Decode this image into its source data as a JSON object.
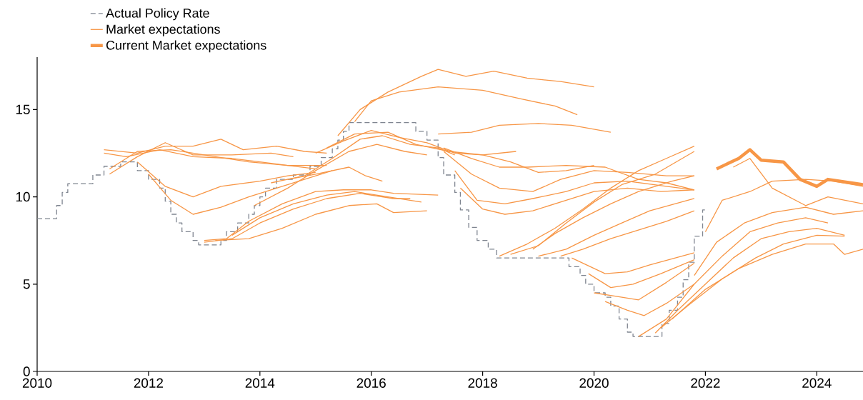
{
  "chart_data": {
    "type": "line",
    "xlim": [
      2010,
      2024.83
    ],
    "ylim": [
      0,
      18
    ],
    "xticks": [
      2010,
      2012,
      2014,
      2016,
      2018,
      2020,
      2022,
      2024
    ],
    "yticks": [
      0,
      5,
      10,
      15
    ],
    "legend": "top left",
    "series": [
      {
        "name": "Actual Policy Rate",
        "type": "step",
        "line_style": "dashed",
        "color": "#7f8590",
        "x": [
          2010,
          2010.35,
          2010.45,
          2010.55,
          2011.0,
          2011.2,
          2011.5,
          2011.8,
          2012.0,
          2012.2,
          2012.3,
          2012.4,
          2012.5,
          2012.6,
          2012.8,
          2012.9,
          2013.3,
          2013.4,
          2013.6,
          2013.8,
          2013.9,
          2014.0,
          2014.1,
          2014.3,
          2014.6,
          2014.9,
          2015.1,
          2015.3,
          2015.4,
          2015.5,
          2015.6,
          2016.8,
          2017.0,
          2017.2,
          2017.3,
          2017.5,
          2017.6,
          2017.75,
          2017.9,
          2018.1,
          2018.25,
          2019.55,
          2019.75,
          2019.85,
          2020.0,
          2020.2,
          2020.3,
          2020.45,
          2020.6,
          2020.7,
          2021.22,
          2021.35,
          2021.5,
          2021.6,
          2021.7,
          2021.8,
          2021.95,
          2022.0
        ],
        "values": [
          8.75,
          9.5,
          10.25,
          10.75,
          11.25,
          11.75,
          12.0,
          11.5,
          11.0,
          10.5,
          9.75,
          9.0,
          8.5,
          8.0,
          7.5,
          7.25,
          7.5,
          8.0,
          8.5,
          9.0,
          9.5,
          10.0,
          10.5,
          11.0,
          11.25,
          11.75,
          12.25,
          12.75,
          13.25,
          13.75,
          14.25,
          13.75,
          13.25,
          12.25,
          11.25,
          10.25,
          9.25,
          8.25,
          7.5,
          7.0,
          6.5,
          6.0,
          5.5,
          5.0,
          4.5,
          4.25,
          3.75,
          3.0,
          2.25,
          2.0,
          2.75,
          3.5,
          4.25,
          5.25,
          6.25,
          7.75,
          9.25,
          9.25
        ]
      },
      {
        "name": "Market expectations",
        "color": "#f79646",
        "x": [
          2011.2,
          2011.8,
          2012.3,
          2012.8,
          2013.3,
          2013.7,
          2014.3,
          2014.8,
          2015.2
        ],
        "values": [
          12.7,
          12.5,
          12.9,
          12.9,
          13.3,
          12.7,
          12.9,
          12.6,
          12.5
        ]
      },
      {
        "color": "#f79646",
        "x": [
          2011.2,
          2011.6,
          2012.2,
          2012.8,
          2013.5,
          2014.0,
          2014.5,
          2015.2
        ],
        "values": [
          12.5,
          12.3,
          12.7,
          12.3,
          12.2,
          12.0,
          11.8,
          11.8
        ]
      },
      {
        "color": "#f79646",
        "x": [
          2011.3,
          2011.8,
          2012.3,
          2012.8,
          2013.5,
          2014.2,
          2014.6
        ],
        "values": [
          11.3,
          12.3,
          13.1,
          12.4,
          12.4,
          12.5,
          12.3
        ]
      },
      {
        "color": "#f79646",
        "x": [
          2011.3,
          2011.8,
          2012.4,
          2013.0,
          2013.8,
          2014.5,
          2015.0
        ],
        "values": [
          11.6,
          12.6,
          12.7,
          12.4,
          12.0,
          11.8,
          11.6
        ]
      },
      {
        "color": "#f79646",
        "x": [
          2011.8,
          2012.3,
          2012.8,
          2013.3,
          2014.0,
          2014.5,
          2015.0
        ],
        "values": [
          12.0,
          10.6,
          10.0,
          10.6,
          10.9,
          11.2,
          11.4
        ]
      },
      {
        "color": "#f79646",
        "x": [
          2012.0,
          2012.4,
          2012.8,
          2013.3,
          2013.8,
          2014.3,
          2014.8,
          2015.3
        ],
        "values": [
          11.3,
          9.8,
          9.0,
          9.4,
          10.0,
          10.5,
          11.0,
          11.5
        ]
      },
      {
        "color": "#f79646",
        "x": [
          2013.0,
          2013.4,
          2013.8,
          2014.4,
          2015.0,
          2015.5,
          2016.0,
          2016.4,
          2017.2
        ],
        "values": [
          7.5,
          7.6,
          8.6,
          9.6,
          10.3,
          10.4,
          10.4,
          10.2,
          10.1
        ]
      },
      {
        "color": "#f79646",
        "x": [
          2013.0,
          2013.5,
          2014.0,
          2014.6,
          2015.2,
          2015.8,
          2016.4,
          2016.7
        ],
        "values": [
          7.4,
          7.6,
          8.5,
          9.3,
          9.9,
          10.2,
          9.9,
          9.9
        ]
      },
      {
        "color": "#f79646",
        "x": [
          2013.2,
          2013.8,
          2014.4,
          2015.0,
          2015.6,
          2016.1,
          2016.4,
          2017.0
        ],
        "values": [
          7.5,
          7.6,
          8.2,
          9.0,
          9.5,
          9.6,
          9.1,
          9.2
        ]
      },
      {
        "color": "#f79646",
        "x": [
          2013.5,
          2014.0,
          2014.6,
          2015.2,
          2015.7,
          2016.3,
          2016.9
        ],
        "values": [
          7.8,
          8.8,
          9.6,
          10.1,
          10.3,
          10.0,
          9.7
        ]
      },
      {
        "color": "#f79646",
        "x": [
          2013.9,
          2014.5,
          2015.0,
          2015.6,
          2016.1,
          2016.6,
          2017.0
        ],
        "values": [
          9.5,
          10.5,
          11.5,
          12.6,
          13.0,
          12.6,
          12.4
        ]
      },
      {
        "color": "#f79646",
        "x": [
          2014.2,
          2014.8,
          2015.3,
          2015.8,
          2016.2,
          2016.7,
          2017.2,
          2017.5
        ],
        "values": [
          10.8,
          11.2,
          12.2,
          13.3,
          13.5,
          13.0,
          12.8,
          12.4
        ]
      },
      {
        "color": "#f79646",
        "x": [
          2014.5,
          2015.0,
          2015.6,
          2015.9,
          2016.2
        ],
        "values": [
          11.0,
          11.3,
          11.7,
          11.2,
          10.9
        ]
      },
      {
        "color": "#f79646",
        "x": [
          2015.0,
          2015.5,
          2016.0,
          2016.5,
          2017.0,
          2017.5,
          2018.0,
          2018.6
        ],
        "values": [
          12.5,
          13.2,
          13.8,
          13.4,
          13.1,
          12.5,
          12.4,
          12.6
        ]
      },
      {
        "color": "#f79646",
        "x": [
          2015.2,
          2015.7,
          2016.3,
          2016.8,
          2017.4,
          2018.0,
          2018.5,
          2019.0,
          2019.5,
          2020.0
        ],
        "values": [
          12.8,
          13.6,
          13.7,
          13.0,
          12.6,
          12.4,
          12.0,
          11.4,
          11.5,
          11.8
        ]
      },
      {
        "color": "#f79646",
        "x": [
          2015.4,
          2015.8,
          2016.3,
          2016.9,
          2017.2,
          2017.7,
          2018.2,
          2018.8,
          2019.4,
          2020.0
        ],
        "values": [
          13.5,
          15.0,
          16.0,
          16.9,
          17.3,
          16.9,
          17.2,
          16.8,
          16.6,
          16.3
        ]
      },
      {
        "color": "#f79646",
        "x": [
          2015.7,
          2016.0,
          2016.5,
          2017.2,
          2018.0,
          2018.7,
          2019.3,
          2019.7
        ],
        "values": [
          14.3,
          15.5,
          16.0,
          16.3,
          16.1,
          15.6,
          15.2,
          14.7
        ]
      },
      {
        "color": "#f79646",
        "x": [
          2017.2,
          2017.8,
          2018.3,
          2019.0,
          2019.6,
          2020.3
        ],
        "values": [
          13.6,
          13.7,
          14.1,
          14.2,
          14.1,
          13.7
        ]
      },
      {
        "color": "#f79646",
        "x": [
          2017.3,
          2017.8,
          2018.3,
          2018.8,
          2019.5,
          2020.2,
          2020.8,
          2021.3,
          2021.8
        ],
        "values": [
          12.8,
          12.2,
          11.7,
          11.7,
          11.8,
          11.7,
          11.0,
          10.8,
          10.4
        ]
      },
      {
        "color": "#f79646",
        "x": [
          2017.3,
          2017.8,
          2018.3,
          2018.9,
          2019.4,
          2020.0,
          2020.6,
          2021.3,
          2021.8
        ],
        "values": [
          12.6,
          11.3,
          10.5,
          10.3,
          11.0,
          11.5,
          11.4,
          11.2,
          11.2
        ]
      },
      {
        "color": "#f79646",
        "x": [
          2017.5,
          2017.9,
          2018.4,
          2018.9,
          2019.5,
          2020.0,
          2020.6,
          2021.3,
          2021.8
        ],
        "values": [
          11.5,
          9.8,
          9.6,
          9.9,
          10.3,
          10.8,
          10.9,
          10.6,
          10.4
        ]
      },
      {
        "color": "#f79646",
        "x": [
          2017.6,
          2018.0,
          2018.4,
          2018.9,
          2019.5,
          2020.0,
          2020.6,
          2021.2,
          2021.8
        ],
        "values": [
          10.5,
          9.3,
          9.0,
          9.2,
          9.8,
          10.3,
          10.5,
          10.3,
          10.4
        ]
      },
      {
        "color": "#f79646",
        "x": [
          2018.3,
          2018.8,
          2019.3,
          2019.8,
          2020.3,
          2020.8,
          2021.3,
          2021.8
        ],
        "values": [
          6.6,
          7.3,
          8.2,
          9.3,
          10.5,
          11.5,
          12.2,
          12.9
        ]
      },
      {
        "color": "#f79646",
        "x": [
          2018.5,
          2019.0,
          2019.5,
          2020.0,
          2020.5,
          2021.1,
          2021.8
        ],
        "values": [
          6.7,
          7.2,
          8.5,
          9.7,
          10.7,
          11.3,
          12.6
        ]
      },
      {
        "color": "#f79646",
        "x": [
          2018.9,
          2019.3,
          2019.8,
          2020.3,
          2020.8,
          2021.4,
          2021.8
        ],
        "values": [
          7.0,
          7.9,
          8.8,
          9.6,
          10.3,
          10.9,
          11.2
        ]
      },
      {
        "color": "#f79646",
        "x": [
          2019.0,
          2019.5,
          2020.0,
          2020.5,
          2021.0,
          2021.8
        ],
        "values": [
          6.6,
          7.0,
          7.8,
          8.5,
          9.2,
          9.9
        ]
      },
      {
        "color": "#f79646",
        "x": [
          2019.4,
          2019.8,
          2020.3,
          2020.8,
          2021.3,
          2021.8
        ],
        "values": [
          6.6,
          7.0,
          7.6,
          8.1,
          8.6,
          9.2
        ]
      },
      {
        "color": "#f79646",
        "x": [
          2019.6,
          2020.2,
          2020.6,
          2021.0,
          2021.8
        ],
        "values": [
          6.5,
          5.6,
          5.7,
          6.1,
          6.8
        ]
      },
      {
        "color": "#f79646",
        "x": [
          2019.9,
          2020.3,
          2020.7,
          2021.2,
          2021.8
        ],
        "values": [
          5.6,
          4.8,
          5.0,
          5.6,
          6.4
        ]
      },
      {
        "color": "#f79646",
        "x": [
          2020.0,
          2020.4,
          2020.8,
          2021.3,
          2021.8
        ],
        "values": [
          4.5,
          4.3,
          4.1,
          5.1,
          6.2
        ]
      },
      {
        "color": "#f79646",
        "x": [
          2020.2,
          2020.6,
          2020.9,
          2021.3,
          2021.8
        ],
        "values": [
          4.0,
          3.5,
          3.2,
          3.9,
          5.0
        ]
      },
      {
        "color": "#f79646",
        "x": [
          2020.8,
          2021.3,
          2021.8,
          2022.3,
          2022.8,
          2023.3,
          2023.8,
          2024.2
        ],
        "values": [
          2.0,
          3.0,
          5.0,
          6.6,
          8.0,
          8.5,
          8.8,
          8.5
        ]
      },
      {
        "color": "#f79646",
        "x": [
          2021.1,
          2021.5,
          2022.0,
          2022.5,
          2023.0,
          2023.5,
          2024.0,
          2024.5
        ],
        "values": [
          2.2,
          3.5,
          5.0,
          6.5,
          7.6,
          8.0,
          8.2,
          7.8
        ]
      },
      {
        "color": "#f79646",
        "x": [
          2021.2,
          2021.7,
          2022.3,
          2022.9,
          2023.4,
          2024.0,
          2024.5
        ],
        "values": [
          2.5,
          3.8,
          5.3,
          6.5,
          7.3,
          7.8,
          7.75
        ]
      },
      {
        "color": "#f79646",
        "x": [
          2021.4,
          2022.0,
          2022.6,
          2023.2,
          2023.8,
          2024.3,
          2024.5,
          2024.83
        ],
        "values": [
          3.0,
          4.7,
          5.9,
          6.7,
          7.3,
          7.3,
          6.7,
          7.0
        ]
      },
      {
        "color": "#f79646",
        "x": [
          2021.8,
          2022.2,
          2022.7,
          2023.2,
          2023.8,
          2024.3,
          2024.83
        ],
        "values": [
          5.5,
          7.4,
          8.5,
          9.1,
          9.4,
          9.0,
          9.2
        ]
      },
      {
        "color": "#f79646",
        "x": [
          2022.0,
          2022.3,
          2022.8,
          2023.2,
          2023.8,
          2024.3,
          2024.83
        ],
        "values": [
          8.0,
          9.8,
          10.3,
          10.9,
          11.0,
          10.9,
          10.6
        ]
      },
      {
        "color": "#f79646",
        "x": [
          2022.5,
          2022.8,
          2023.2,
          2023.8,
          2024.2,
          2024.83
        ],
        "values": [
          11.7,
          12.2,
          10.5,
          9.5,
          10.0,
          9.6
        ]
      },
      {
        "name": "Current Market expectations",
        "color": "#f79646",
        "x": [
          2022.2,
          2022.6,
          2022.8,
          2023.0,
          2023.4,
          2023.7,
          2024.0,
          2024.2,
          2024.83
        ],
        "values": [
          11.6,
          12.2,
          12.7,
          12.1,
          12.0,
          11.0,
          10.6,
          11.0,
          10.7
        ]
      }
    ]
  }
}
